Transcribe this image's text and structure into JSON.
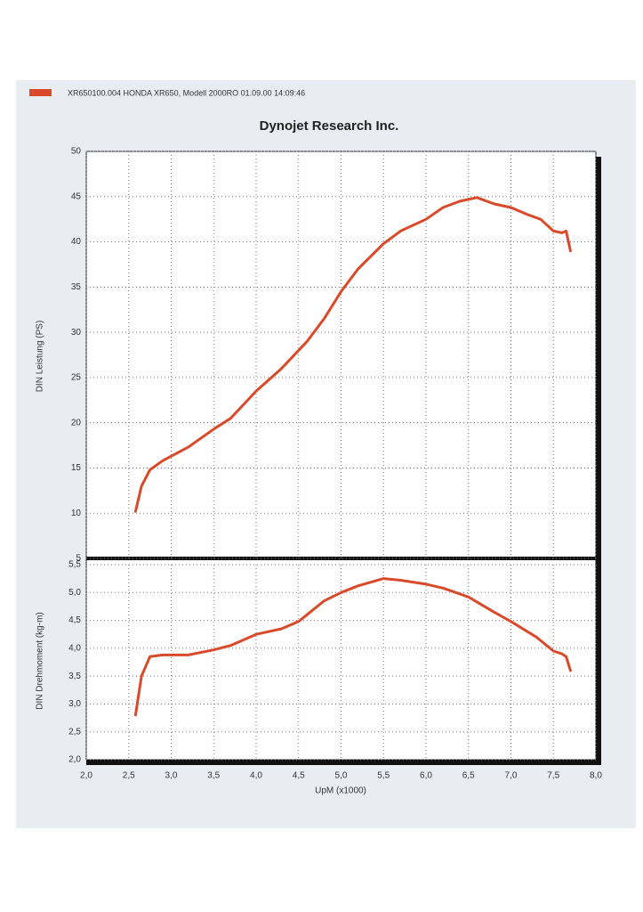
{
  "chart_data": [
    {
      "type": "line",
      "title": "Dynojet Research Inc.",
      "ylabel": "DIN Leistung (PS)",
      "x": [
        2.58,
        2.65,
        2.75,
        2.9,
        3.0,
        3.2,
        3.5,
        3.7,
        4.0,
        4.3,
        4.6,
        4.8,
        5.0,
        5.2,
        5.5,
        5.7,
        6.0,
        6.2,
        6.4,
        6.6,
        6.8,
        7.0,
        7.2,
        7.35,
        7.5,
        7.6,
        7.65,
        7.7
      ],
      "series": [
        {
          "name": "XR650100.004  HONDA XR650, Modell 2000RO  01.09.00 14:09:46",
          "color": "#d94a2a",
          "values": [
            10.2,
            13,
            14.8,
            15.8,
            16.3,
            17.3,
            19.3,
            20.5,
            23.5,
            26,
            29,
            31.5,
            34.5,
            37,
            39.8,
            41.2,
            42.5,
            43.8,
            44.5,
            44.9,
            44.2,
            43.8,
            43,
            42.5,
            41.2,
            41.0,
            41.2,
            39
          ]
        }
      ],
      "xlim": [
        2,
        8
      ],
      "ylim": [
        5,
        50
      ],
      "yticks": [
        5,
        10,
        15,
        20,
        25,
        30,
        35,
        40,
        45,
        50
      ],
      "grid": true
    },
    {
      "type": "line",
      "xlabel": "UpM (x1000)",
      "ylabel": "DIN Drehmoment (kg-m)",
      "x": [
        2.58,
        2.65,
        2.75,
        2.9,
        3.2,
        3.5,
        3.7,
        4.0,
        4.3,
        4.5,
        4.8,
        5.0,
        5.2,
        5.5,
        5.7,
        6.0,
        6.2,
        6.5,
        6.8,
        7.0,
        7.3,
        7.5,
        7.6,
        7.65,
        7.7
      ],
      "series": [
        {
          "color": "#d94a2a",
          "values": [
            2.8,
            3.5,
            3.85,
            3.88,
            3.88,
            3.97,
            4.05,
            4.25,
            4.35,
            4.48,
            4.85,
            5.0,
            5.12,
            5.25,
            5.22,
            5.15,
            5.08,
            4.92,
            4.65,
            4.48,
            4.2,
            3.95,
            3.9,
            3.85,
            3.6
          ]
        }
      ],
      "xlim": [
        2,
        8
      ],
      "xticks": [
        {
          "value": 2.0,
          "label": "2,0"
        },
        {
          "value": 2.5,
          "label": "2,5"
        },
        {
          "value": 3.0,
          "label": "3,0"
        },
        {
          "value": 3.5,
          "label": "3,5"
        },
        {
          "value": 4.0,
          "label": "4,0"
        },
        {
          "value": 4.5,
          "label": "4,5"
        },
        {
          "value": 5.0,
          "label": "5,0"
        },
        {
          "value": 5.5,
          "label": "5,5"
        },
        {
          "value": 6.0,
          "label": "6,0"
        },
        {
          "value": 6.5,
          "label": "6,5"
        },
        {
          "value": 7.0,
          "label": "7,0"
        },
        {
          "value": 7.5,
          "label": "7,5"
        },
        {
          "value": 8.0,
          "label": "8,0"
        }
      ],
      "ylim": [
        2,
        5.5
      ],
      "yticks": [
        {
          "value": 2.0,
          "label": "2,0"
        },
        {
          "value": 2.5,
          "label": "2,5"
        },
        {
          "value": 3.0,
          "label": "3,0"
        },
        {
          "value": 3.5,
          "label": "3,5"
        },
        {
          "value": 4.0,
          "label": "4,0"
        },
        {
          "value": 4.5,
          "label": "4,5"
        },
        {
          "value": 5.0,
          "label": "5,0"
        },
        {
          "value": 5.5,
          "label": "5,5"
        }
      ],
      "grid": true
    }
  ]
}
